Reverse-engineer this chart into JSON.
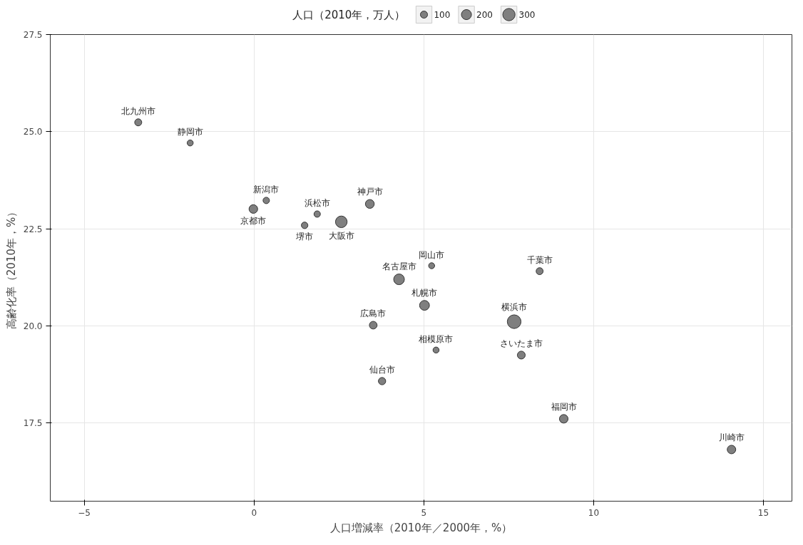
{
  "chart_data": {
    "type": "bubble",
    "xlabel": "人口増減率（2010年／2000年，%）",
    "ylabel": "高齢化率（2010年，%）",
    "legend_title": "人口（2010年，万人）",
    "grid": true,
    "xlim": [
      -6,
      15.84
    ],
    "ylim": [
      15.49,
      27.5
    ],
    "xticks": [
      -5,
      0,
      5,
      10,
      15
    ],
    "yticks": [
      {
        "value": 17.5,
        "label": "17.5"
      },
      {
        "value": 20,
        "label": "20.0"
      },
      {
        "value": 22.5,
        "label": "22.5"
      },
      {
        "value": 25,
        "label": "25.0"
      },
      {
        "value": 27.5,
        "label": "27.5"
      }
    ],
    "size_legend": [
      100,
      200,
      300
    ],
    "x": [
      -3.41,
      -1.88,
      0.36,
      -0.02,
      1.86,
      1.49,
      2.57,
      3.41,
      5.23,
      4.27,
      8.41,
      5.02,
      3.51,
      7.66,
      5.36,
      7.87,
      3.77,
      9.12,
      14.06
    ],
    "series": [
      {
        "color": "#7f7f7f",
        "values": [
          25.24,
          24.71,
          23.23,
          23.01,
          22.88,
          22.59,
          22.68,
          23.14,
          21.55,
          21.2,
          21.41,
          20.53,
          20.02,
          20.11,
          19.38,
          19.25,
          18.58,
          17.61,
          16.82
        ],
        "sizes": [
          98,
          72,
          81,
          147,
          80,
          84,
          267,
          154,
          71,
          226,
          96,
          191,
          117,
          369,
          72,
          122,
          105,
          146,
          143
        ]
      }
    ],
    "annotations": [
      {
        "text": "北九州市",
        "x": -3.41,
        "y": 25.24
      },
      {
        "text": "静岡市",
        "x": -1.88,
        "y": 24.71
      },
      {
        "text": "新潟市",
        "x": 0.36,
        "y": 23.23
      },
      {
        "text": "京都市",
        "x": -0.02,
        "y": 23.01
      },
      {
        "text": "浜松市",
        "x": 1.86,
        "y": 22.88
      },
      {
        "text": "堺市",
        "x": 1.49,
        "y": 22.59
      },
      {
        "text": "大阪市",
        "x": 2.57,
        "y": 22.68
      },
      {
        "text": "神戸市",
        "x": 3.41,
        "y": 23.14
      },
      {
        "text": "岡山市",
        "x": 5.23,
        "y": 21.55
      },
      {
        "text": "名古屋市",
        "x": 4.27,
        "y": 21.2
      },
      {
        "text": "千葉市",
        "x": 8.41,
        "y": 21.41
      },
      {
        "text": "札幌市",
        "x": 5.02,
        "y": 20.53
      },
      {
        "text": "広島市",
        "x": 3.51,
        "y": 20.02
      },
      {
        "text": "横浜市",
        "x": 7.66,
        "y": 20.11
      },
      {
        "text": "相模原市",
        "x": 5.36,
        "y": 19.38
      },
      {
        "text": "さいたま市",
        "x": 7.87,
        "y": 19.25
      },
      {
        "text": "仙台市",
        "x": 3.77,
        "y": 18.58
      },
      {
        "text": "福岡市",
        "x": 9.12,
        "y": 17.61
      },
      {
        "text": "川崎市",
        "x": 14.06,
        "y": 16.82
      }
    ]
  }
}
